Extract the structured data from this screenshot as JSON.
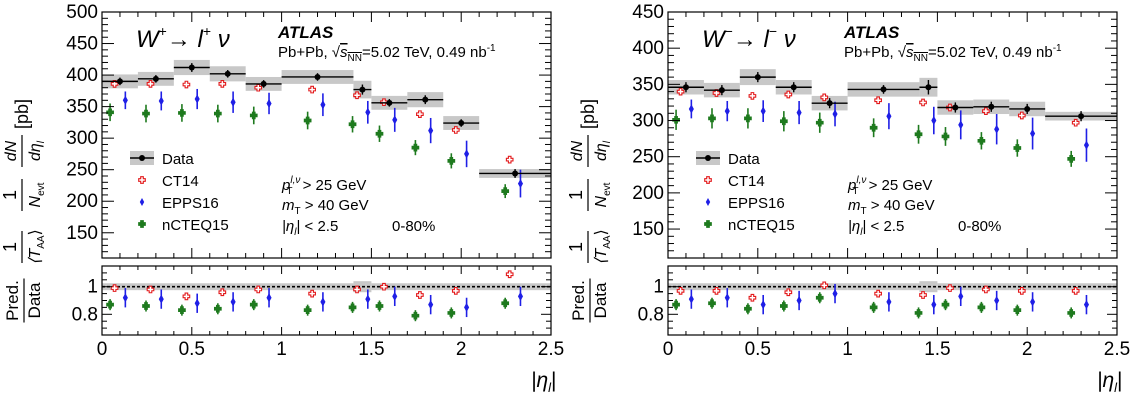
{
  "chart_data": [
    {
      "type": "scatter",
      "panel": "left",
      "process_symbol": "W",
      "process_charge": "+",
      "process_arrow": "→",
      "process_lepton": "l",
      "process_lepton_charge": "+",
      "process_nu": "ν",
      "experiment": "ATLAS",
      "collision_prefix": "Pb+Pb, ",
      "sqrt_s": "√",
      "sqrt_arg": "s",
      "sqrt_sub": "NN",
      "energy_lumi": "=5.02 TeV, 0.49 nb",
      "lumi_exp": "-1",
      "ylabel_prefix": "1",
      "ylabel_taa": "⟨T",
      "ylabel_taa_sub": "AA",
      "ylabel_taa_close": "⟩",
      "ylabel_one": "1",
      "ylabel_nevt": "N",
      "ylabel_nevt_sub": "evt",
      "ylabel_dN": "dN",
      "ylabel_deta": "dη",
      "ylabel_deta_sub": "l",
      "ylabel_unit": "[pb]",
      "ratio_ylabel_num": "Pred.",
      "ratio_ylabel_den": "Data",
      "xlabel": "|η",
      "xlabel_sub": "l",
      "xlabel_close": "|",
      "xlim": [
        0,
        2.5
      ],
      "ylim": [
        110,
        500
      ],
      "ratio_ylim": [
        0.65,
        1.15
      ],
      "x_ticks": [
        "0",
        "0.5",
        "1",
        "1.5",
        "2",
        "2.5"
      ],
      "y_ticks": [
        "150",
        "200",
        "250",
        "300",
        "350",
        "400",
        "450",
        "500"
      ],
      "ratio_ticks": [
        "0.8",
        "1"
      ],
      "cuts": {
        "pt_label": "p",
        "pt_sup": "l,ν",
        "pt_sub": "T",
        "pt_value": " > 25 GeV",
        "mt_label": "m",
        "mt_sub": "T",
        "mt_value": " > 40 GeV",
        "eta_label": "|η",
        "eta_sub": "l",
        "eta_value": "| < 2.5",
        "centrality": "0-80%"
      },
      "legend": {
        "data": "Data",
        "ct14": "CT14",
        "epps16": "EPPS16",
        "ncteq15": "nCTEQ15"
      },
      "bins": [
        [
          0.0,
          0.2
        ],
        [
          0.2,
          0.4
        ],
        [
          0.4,
          0.6
        ],
        [
          0.6,
          0.8
        ],
        [
          0.8,
          1.0
        ],
        [
          1.0,
          1.4
        ],
        [
          1.4,
          1.5
        ],
        [
          1.5,
          1.7
        ],
        [
          1.7,
          1.9
        ],
        [
          1.9,
          2.1
        ],
        [
          2.1,
          2.5
        ]
      ],
      "data": {
        "y": [
          390,
          394,
          412,
          402,
          386,
          397,
          377,
          356,
          361,
          324,
          244
        ],
        "err": [
          6,
          6,
          7,
          6,
          6,
          6,
          8,
          6,
          7,
          6,
          7
        ],
        "sys": [
          11,
          11,
          12,
          12,
          11,
          11,
          14,
          11,
          12,
          11,
          7
        ],
        "ratio_sys": [
          0.025,
          0.025,
          0.025,
          0.025,
          0.025,
          0.025,
          0.04,
          0.025,
          0.025,
          0.025,
          0.025
        ]
      },
      "ct14": {
        "y": [
          386,
          386,
          385,
          386,
          380,
          377,
          368,
          357,
          338,
          313,
          266
        ],
        "err": [
          8,
          8,
          8,
          8,
          8,
          8,
          8,
          8,
          8,
          8,
          8
        ],
        "ratio": [
          0.99,
          0.98,
          0.93,
          0.96,
          0.98,
          0.95,
          0.98,
          1.0,
          0.94,
          0.97,
          1.09
        ]
      },
      "epps16": {
        "y": [
          360,
          359,
          362,
          357,
          355,
          353,
          341,
          329,
          312,
          275,
          228
        ],
        "err": [
          14,
          15,
          16,
          17,
          17,
          18,
          18,
          19,
          20,
          21,
          22
        ],
        "ratio": [
          0.92,
          0.91,
          0.88,
          0.89,
          0.92,
          0.89,
          0.91,
          0.93,
          0.87,
          0.85,
          0.93
        ]
      },
      "ncteq15": {
        "y": [
          341,
          339,
          340,
          339,
          336,
          328,
          322,
          307,
          285,
          264,
          216
        ],
        "err": [
          14,
          14,
          14,
          14,
          14,
          14,
          13,
          13,
          12,
          12,
          11
        ],
        "ratio": [
          0.87,
          0.86,
          0.83,
          0.84,
          0.87,
          0.83,
          0.85,
          0.86,
          0.79,
          0.81,
          0.88
        ]
      }
    },
    {
      "type": "scatter",
      "panel": "right",
      "process_symbol": "W",
      "process_charge": "−",
      "process_arrow": "→",
      "process_lepton": "l",
      "process_lepton_charge": "−",
      "process_nu": "ν",
      "experiment": "ATLAS",
      "collision_prefix": "Pb+Pb, ",
      "sqrt_s": "√",
      "sqrt_arg": "s",
      "sqrt_sub": "NN",
      "energy_lumi": "=5.02 TeV, 0.49 nb",
      "lumi_exp": "-1",
      "ylabel_prefix": "1",
      "ylabel_taa": "⟨T",
      "ylabel_taa_sub": "AA",
      "ylabel_taa_close": "⟩",
      "ylabel_one": "1",
      "ylabel_nevt": "N",
      "ylabel_nevt_sub": "evt",
      "ylabel_dN": "dN",
      "ylabel_deta": "dη",
      "ylabel_deta_sub": "l",
      "ylabel_unit": "[pb]",
      "ratio_ylabel_num": "Pred.",
      "ratio_ylabel_den": "Data",
      "xlabel": "|η",
      "xlabel_sub": "l",
      "xlabel_close": "|",
      "xlim": [
        0,
        2.5
      ],
      "ylim": [
        110,
        450
      ],
      "ratio_ylim": [
        0.65,
        1.15
      ],
      "x_ticks": [
        "0",
        "0.5",
        "1",
        "1.5",
        "2",
        "2.5"
      ],
      "y_ticks": [
        "150",
        "200",
        "250",
        "300",
        "350",
        "400",
        "450"
      ],
      "ratio_ticks": [
        "0.8",
        "1"
      ],
      "cuts": {
        "pt_label": "p",
        "pt_sup": "l,ν",
        "pt_sub": "T",
        "pt_value": " > 25 GeV",
        "mt_label": "m",
        "mt_sub": "T",
        "mt_value": " > 40 GeV",
        "eta_label": "|η",
        "eta_sub": "l",
        "eta_value": "| < 2.5",
        "centrality": "0-80%"
      },
      "legend": {
        "data": "Data",
        "ct14": "CT14",
        "epps16": "EPPS16",
        "ncteq15": "nCTEQ15"
      },
      "bins": [
        [
          0.0,
          0.2
        ],
        [
          0.2,
          0.4
        ],
        [
          0.4,
          0.6
        ],
        [
          0.6,
          0.8
        ],
        [
          0.8,
          1.0
        ],
        [
          1.0,
          1.4
        ],
        [
          1.4,
          1.5
        ],
        [
          1.5,
          1.7
        ],
        [
          1.7,
          1.9
        ],
        [
          1.9,
          2.1
        ],
        [
          2.1,
          2.5
        ]
      ],
      "data": {
        "y": [
          346,
          342,
          360,
          346,
          324,
          343,
          346,
          318,
          319,
          316,
          306
        ],
        "err": [
          7,
          7,
          7,
          7,
          7,
          6,
          10,
          7,
          7,
          7,
          7
        ],
        "sys": [
          10,
          10,
          11,
          10,
          10,
          10,
          13,
          10,
          10,
          10,
          6
        ],
        "ratio_sys": [
          0.025,
          0.025,
          0.025,
          0.025,
          0.025,
          0.025,
          0.04,
          0.025,
          0.025,
          0.025,
          0.025
        ]
      },
      "ct14": {
        "y": [
          340,
          338,
          334,
          336,
          332,
          328,
          325,
          318,
          313,
          307,
          297
        ],
        "err": [
          8,
          8,
          8,
          8,
          8,
          8,
          8,
          8,
          8,
          8,
          8
        ],
        "ratio": [
          0.97,
          0.97,
          0.92,
          0.96,
          1.01,
          0.95,
          0.94,
          0.99,
          0.98,
          0.97,
          0.97
        ]
      },
      "epps16": {
        "y": [
          316,
          313,
          313,
          311,
          309,
          306,
          300,
          294,
          288,
          282,
          266
        ],
        "err": [
          13,
          14,
          15,
          16,
          17,
          18,
          19,
          20,
          21,
          22,
          23
        ],
        "ratio": [
          0.91,
          0.92,
          0.87,
          0.9,
          0.95,
          0.89,
          0.87,
          0.93,
          0.9,
          0.89,
          0.87
        ]
      },
      "ncteq15": {
        "y": [
          301,
          303,
          303,
          299,
          297,
          290,
          281,
          278,
          272,
          262,
          247
        ],
        "err": [
          14,
          14,
          14,
          14,
          14,
          13,
          13,
          13,
          12,
          12,
          11
        ],
        "ratio": [
          0.87,
          0.88,
          0.84,
          0.86,
          0.92,
          0.85,
          0.81,
          0.87,
          0.85,
          0.83,
          0.81
        ]
      }
    }
  ]
}
